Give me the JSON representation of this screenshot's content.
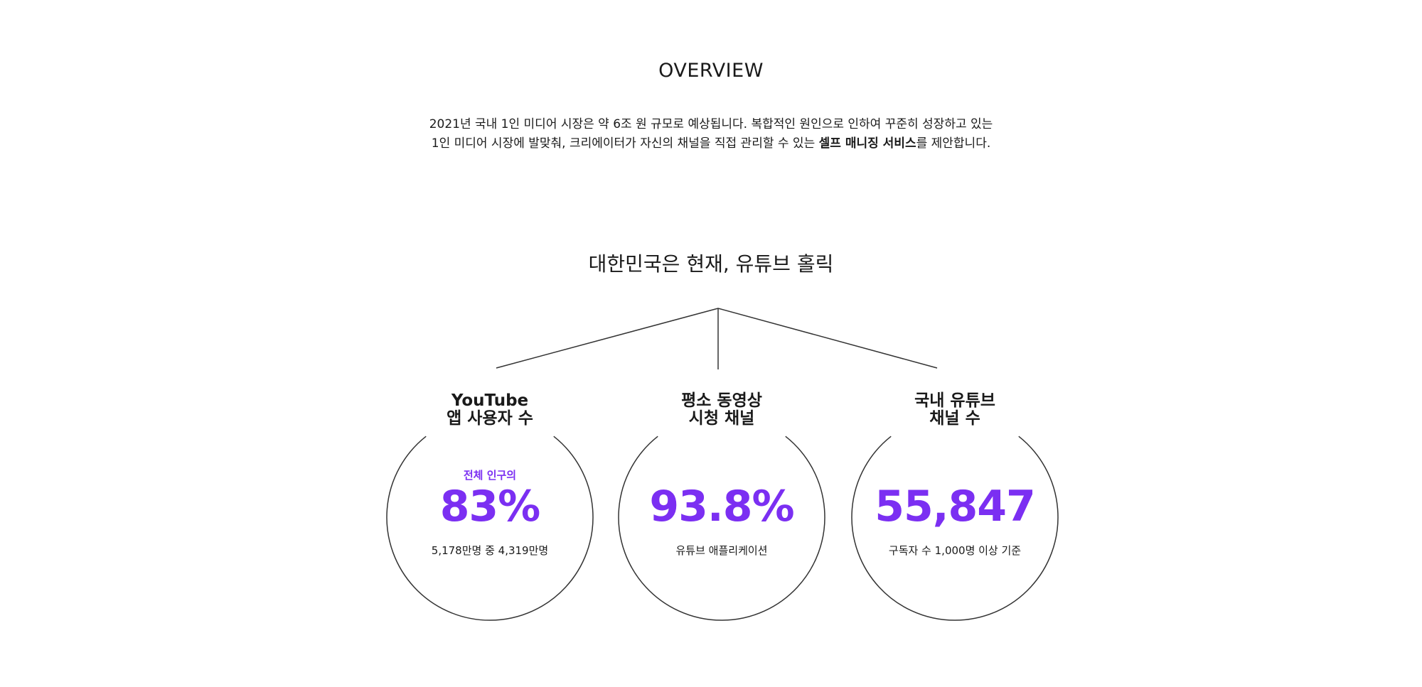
{
  "overview": {
    "title": "OVERVIEW",
    "intro_line1": "2021년 국내 1인 미디어 시장은 약 6조 원 규모로 예상됩니다. 복합적인 원인으로 인하여 꾸준히 성장하고 있는",
    "intro_line2_pre": "1인 미디어 시장에 발맞춰, 크리에이터가 자신의 채널을 직접 관리할 수 있는 ",
    "intro_line2_bold": "셀프 매니징 서비스",
    "intro_line2_post": "를 제안합니다."
  },
  "headline": "대한민국은 현재, 유튜브 홀릭",
  "colors": {
    "accent": "#7b2ff2",
    "text": "#1a1a1a",
    "line": "#333333",
    "background": "#ffffff"
  },
  "stats": [
    {
      "label_line1": "YouTube",
      "label_line2": "앱 사용자 수",
      "kicker": "전체 인구의",
      "value": "83%",
      "caption": "5,178만명 중 4,319만명"
    },
    {
      "label_line1": "평소 동영상",
      "label_line2": "시청 채널",
      "kicker": "",
      "value": "93.8%",
      "caption": "유튜브 애플리케이션"
    },
    {
      "label_line1": "국내 유튜브",
      "label_line2": "채널 수",
      "kicker": "",
      "value": "55,847",
      "caption": "구독자 수 1,000명 이상 기준"
    }
  ]
}
